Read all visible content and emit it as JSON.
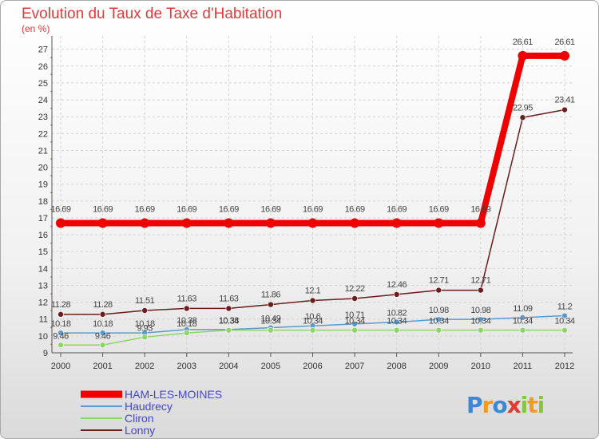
{
  "chart_data": {
    "type": "line",
    "title": "Evolution du Taux de Taxe d'Habitation",
    "ylabel": "(en %)",
    "xlabel": "",
    "ylim": [
      9,
      27.6
    ],
    "y_ticks": [
      "9",
      "10",
      "11",
      "12",
      "13",
      "14",
      "15",
      "16",
      "17",
      "18",
      "19",
      "20",
      "21",
      "22",
      "23",
      "24",
      "25",
      "26",
      "27"
    ],
    "categories": [
      "2000",
      "2001",
      "2002",
      "2003",
      "2004",
      "2005",
      "2006",
      "2007",
      "2008",
      "2009",
      "2010",
      "2011",
      "2012"
    ],
    "series": [
      {
        "name": "HAM-LES-MOINES",
        "color": "#ee0000",
        "values": [
          16.69,
          16.69,
          16.69,
          16.69,
          16.69,
          16.69,
          16.69,
          16.69,
          16.69,
          16.69,
          16.69,
          26.61,
          26.61
        ],
        "labels": [
          "16.69",
          "16.69",
          "16.69",
          "16.69",
          "16.69",
          "16.69",
          "16.69",
          "16.69",
          "16.69",
          "16.69",
          "16.69",
          "26.61",
          "26.61"
        ]
      },
      {
        "name": "Haudrecy",
        "color": "#5f99c9",
        "values": [
          10.18,
          10.18,
          10.18,
          10.38,
          10.38,
          10.49,
          10.6,
          10.71,
          10.82,
          10.98,
          10.98,
          11.09,
          11.2
        ],
        "labels": [
          "10.18",
          "10.18",
          "10.18",
          "10.38",
          "10.38",
          "10.49",
          "10.6",
          "10.71",
          "10.82",
          "10.98",
          "10.98",
          "11.09",
          "11.2"
        ]
      },
      {
        "name": "Cliron",
        "color": "#8fd468",
        "values": [
          9.46,
          9.46,
          9.93,
          10.18,
          10.34,
          10.34,
          10.34,
          10.34,
          10.34,
          10.34,
          10.34,
          10.34,
          10.34
        ],
        "labels": [
          "9.46",
          "9.46",
          "9.93",
          "10.18",
          "10.34",
          "10.34",
          "10.34",
          "10.34",
          "10.34",
          "10.34",
          "10.34",
          "10.34",
          "10.34"
        ]
      },
      {
        "name": "Lonny",
        "color": "#6b1c1c",
        "values": [
          11.28,
          11.28,
          11.51,
          11.63,
          11.63,
          11.86,
          12.1,
          12.22,
          12.46,
          12.71,
          12.71,
          22.95,
          23.41
        ],
        "labels": [
          "11.28",
          "11.28",
          "11.51",
          "11.63",
          "11.63",
          "11.86",
          "12.1",
          "12.22",
          "12.46",
          "12.71",
          "12.71",
          "22.95",
          "23.41"
        ]
      }
    ],
    "legend_position": "bottom-left"
  },
  "brand": {
    "letters": [
      "P",
      "r",
      "o",
      "x",
      "i",
      "t",
      "i"
    ],
    "colors": [
      "#3a88d6",
      "#f29a1b",
      "#3a88d6",
      "#e23b2e",
      "#8ac43f",
      "#f29a1b",
      "#8ac43f"
    ]
  }
}
